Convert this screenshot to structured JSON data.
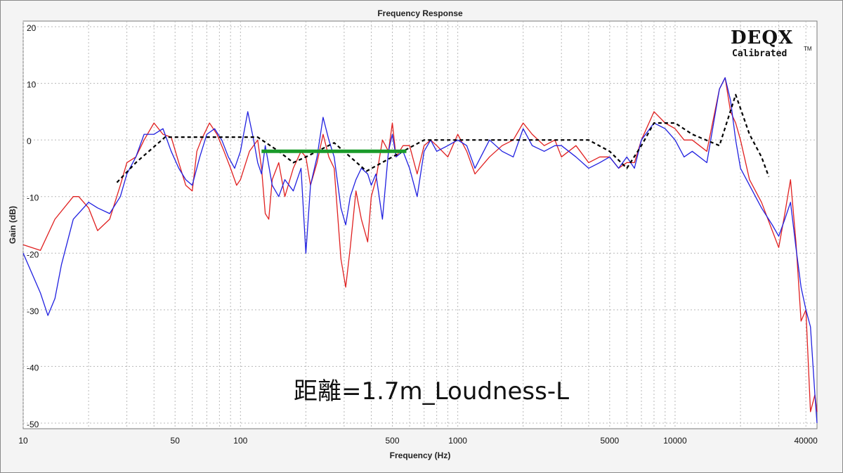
{
  "chart_data": {
    "type": "line",
    "title": "Frequency Response",
    "xlabel": "Frequency (Hz)",
    "ylabel": "Gain (dB)",
    "x_scale": "log",
    "xlim": [
      10,
      45000
    ],
    "ylim": [
      -51,
      21
    ],
    "x_ticks": [
      10,
      50,
      100,
      500,
      1000,
      5000,
      10000,
      40000
    ],
    "x_tick_labels": [
      "10",
      "50",
      "100",
      "500",
      "1000",
      "5000",
      "10000",
      "40000"
    ],
    "y_ticks": [
      20,
      10,
      0,
      -10,
      -20,
      -30,
      -40,
      -50
    ],
    "y_tick_labels": [
      "20",
      "10",
      "0",
      "-10",
      "-20",
      "-30",
      "-40",
      "-50"
    ],
    "grid": true,
    "logo": {
      "main": "DEQX",
      "sub": "Calibrated",
      "tm": "TM"
    },
    "annotation": "距離=1.7m_Loudness-L",
    "colors": {
      "red": "#e02020",
      "blue": "#2020e0",
      "target": "#000000",
      "green": "#1a9a2a",
      "grid": "#b8b8b8"
    },
    "series": [
      {
        "style": "red-solid",
        "x": [
          10,
          12,
          14,
          17,
          18,
          20,
          22,
          25,
          28,
          30,
          33,
          36,
          40,
          44,
          48,
          52,
          56,
          60,
          63,
          66,
          72,
          78,
          84,
          90,
          96,
          100,
          110,
          120,
          125,
          130,
          135,
          140,
          150,
          160,
          175,
          190,
          200,
          210,
          225,
          240,
          255,
          270,
          290,
          305,
          320,
          340,
          360,
          385,
          400,
          420,
          450,
          480,
          500,
          520,
          560,
          600,
          650,
          700,
          750,
          800,
          900,
          1000,
          1100,
          1200,
          1400,
          1600,
          1800,
          2000,
          2200,
          2500,
          2800,
          3000,
          3500,
          4000,
          4500,
          5000,
          5500,
          6000,
          6500,
          7000,
          8000,
          9000,
          10000,
          11000,
          12000,
          14000,
          16000,
          17000,
          18000,
          19000,
          20000,
          22000,
          25000,
          28000,
          30000,
          32000,
          34000,
          36000,
          38000,
          40000,
          42000,
          44000,
          45000
        ],
        "y": [
          -18.5,
          -19.5,
          -14,
          -10,
          -10,
          -12,
          -16,
          -14,
          -8,
          -4,
          -3,
          0,
          3,
          1,
          0.5,
          -4,
          -8,
          -9,
          -2,
          0,
          3,
          1,
          -2,
          -5,
          -8,
          -7,
          -2,
          0,
          -5,
          -13,
          -14,
          -7,
          -4,
          -10,
          -5,
          -2,
          -3,
          -8,
          -4,
          1,
          -3,
          -5,
          -21,
          -26,
          -19,
          -9,
          -14,
          -18,
          -10,
          -7,
          0,
          -2,
          3,
          -3,
          -1,
          -1,
          -6,
          -1,
          0,
          -1,
          -3,
          1,
          -2,
          -6,
          -3,
          -1,
          0,
          3,
          1,
          -1,
          0,
          -3,
          -1,
          -4,
          -3,
          -3,
          -5,
          -4,
          -4,
          0,
          5,
          3,
          2,
          0,
          0,
          -2,
          9,
          11,
          5,
          3,
          0,
          -7,
          -11,
          -16,
          -19,
          -13,
          -7,
          -18,
          -32,
          -30,
          -48,
          -45,
          -48
        ]
      },
      {
        "style": "blue-solid",
        "x": [
          10,
          12,
          13,
          14,
          15,
          17,
          20,
          22,
          25,
          28,
          30,
          33,
          36,
          40,
          44,
          48,
          52,
          56,
          60,
          65,
          70,
          76,
          82,
          88,
          94,
          100,
          108,
          115,
          120,
          125,
          130,
          140,
          150,
          160,
          175,
          190,
          200,
          210,
          225,
          240,
          255,
          270,
          290,
          305,
          320,
          340,
          360,
          385,
          400,
          420,
          450,
          480,
          500,
          520,
          560,
          600,
          650,
          700,
          750,
          800,
          900,
          1000,
          1100,
          1200,
          1400,
          1600,
          1800,
          2000,
          2200,
          2500,
          2800,
          3000,
          3500,
          4000,
          4500,
          5000,
          5500,
          6000,
          6500,
          7000,
          8000,
          9000,
          10000,
          11000,
          12000,
          14000,
          16000,
          17000,
          18000,
          19000,
          20000,
          22000,
          25000,
          28000,
          30000,
          32000,
          34000,
          36000,
          38000,
          40000,
          42000,
          44000,
          45000
        ],
        "y": [
          -20,
          -27,
          -31,
          -28,
          -22,
          -14,
          -11,
          -12,
          -13,
          -10,
          -6,
          -3,
          1,
          1,
          2,
          -2,
          -5,
          -7,
          -8,
          -3,
          1,
          2,
          0,
          -3,
          -5,
          -2,
          5,
          0,
          -4,
          -6,
          -1,
          -8,
          -10,
          -7,
          -9,
          -5,
          -20,
          -8,
          -3,
          4,
          0,
          -3,
          -12,
          -15,
          -10,
          -7,
          -5,
          -6,
          -8,
          -6,
          -14,
          -2,
          1,
          -3,
          -2,
          -5,
          -10,
          -2,
          0,
          -2,
          -1,
          0,
          -1,
          -5,
          0,
          -2,
          -3,
          2,
          -1,
          -2,
          -1,
          -1,
          -3,
          -5,
          -4,
          -3,
          -5,
          -3,
          -5,
          0,
          3,
          2,
          0,
          -3,
          -2,
          -4,
          9,
          11,
          7,
          0,
          -5,
          -8,
          -12,
          -15,
          -17,
          -14,
          -11,
          -19,
          -26,
          -30,
          -33,
          -45,
          -50
        ]
      },
      {
        "style": "black-dashed",
        "x": [
          27,
          33,
          45,
          60,
          80,
          120,
          150,
          175,
          200,
          270,
          380,
          500,
          700,
          1000,
          2000,
          4000,
          5000,
          6000,
          7000,
          8000,
          10000,
          12000,
          16000,
          19000,
          22000,
          25000,
          27000
        ],
        "y": [
          -7.5,
          -4,
          0.5,
          0.5,
          0.5,
          0.5,
          -2,
          -4,
          -3,
          -0.5,
          -5.5,
          -3,
          0,
          0,
          0,
          0,
          -2,
          -5,
          -1,
          3,
          3,
          1,
          -1,
          8,
          1,
          -3,
          -6.5
        ]
      },
      {
        "style": "green-solid",
        "x": [
          125,
          580
        ],
        "y": [
          -2,
          -2
        ]
      }
    ]
  }
}
